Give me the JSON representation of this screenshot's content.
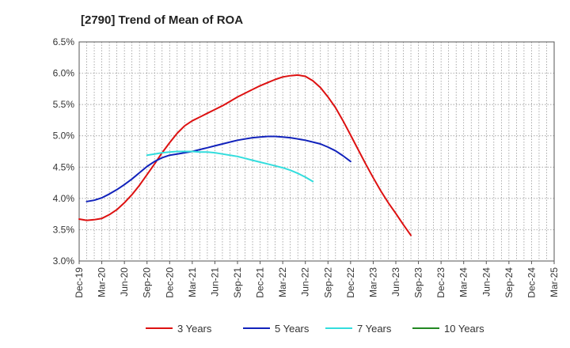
{
  "chart_data": {
    "type": "line",
    "title": "[2790]  Trend of Mean of ROA",
    "xlabel": "",
    "ylabel": "",
    "ylim": [
      3.0,
      6.5
    ],
    "grid": true,
    "legend_position": "bottom",
    "x_ticks": [
      "Dec-19",
      "Mar-20",
      "Jun-20",
      "Sep-20",
      "Dec-20",
      "Mar-21",
      "Jun-21",
      "Sep-21",
      "Dec-21",
      "Mar-22",
      "Jun-22",
      "Sep-22",
      "Dec-22",
      "Mar-23",
      "Jun-23",
      "Sep-23",
      "Dec-23",
      "Mar-24",
      "Jun-24",
      "Sep-24",
      "Dec-24",
      "Mar-25"
    ],
    "y_ticks": [
      "3.0%",
      "3.5%",
      "4.0%",
      "4.5%",
      "5.0%",
      "5.5%",
      "6.0%",
      "6.5%"
    ],
    "y_tick_values": [
      3.0,
      3.5,
      4.0,
      4.5,
      5.0,
      5.5,
      6.0,
      6.5
    ],
    "series": [
      {
        "name": "3 Years",
        "color": "#dd1111",
        "start_index": 0,
        "values": [
          3.67,
          3.65,
          3.66,
          3.68,
          3.74,
          3.82,
          3.93,
          4.06,
          4.21,
          4.38,
          4.55,
          4.73,
          4.89,
          5.04,
          5.16,
          5.24,
          5.3,
          5.36,
          5.42,
          5.48,
          5.55,
          5.62,
          5.68,
          5.74,
          5.8,
          5.85,
          5.9,
          5.94,
          5.96,
          5.97,
          5.95,
          5.88,
          5.77,
          5.62,
          5.45,
          5.24,
          5.01,
          4.78,
          4.55,
          4.33,
          4.12,
          3.93,
          3.76,
          3.58,
          3.41
        ]
      },
      {
        "name": "5 Years",
        "color": "#1122bb",
        "start_index": 1,
        "values": [
          3.95,
          3.97,
          4.01,
          4.07,
          4.14,
          4.22,
          4.31,
          4.41,
          4.51,
          4.59,
          4.65,
          4.69,
          4.71,
          4.73,
          4.75,
          4.78,
          4.81,
          4.84,
          4.87,
          4.9,
          4.93,
          4.95,
          4.97,
          4.98,
          4.99,
          4.99,
          4.98,
          4.97,
          4.95,
          4.93,
          4.9,
          4.87,
          4.82,
          4.76,
          4.68,
          4.59
        ]
      },
      {
        "name": "7 Years",
        "color": "#33dddd",
        "start_index": 9,
        "values": [
          4.69,
          4.71,
          4.73,
          4.74,
          4.75,
          4.75,
          4.75,
          4.74,
          4.74,
          4.73,
          4.71,
          4.69,
          4.67,
          4.64,
          4.61,
          4.58,
          4.55,
          4.52,
          4.49,
          4.45,
          4.4,
          4.34,
          4.27
        ]
      },
      {
        "name": "10 Years",
        "color": "#228822",
        "start_index": 0,
        "values": []
      }
    ]
  }
}
